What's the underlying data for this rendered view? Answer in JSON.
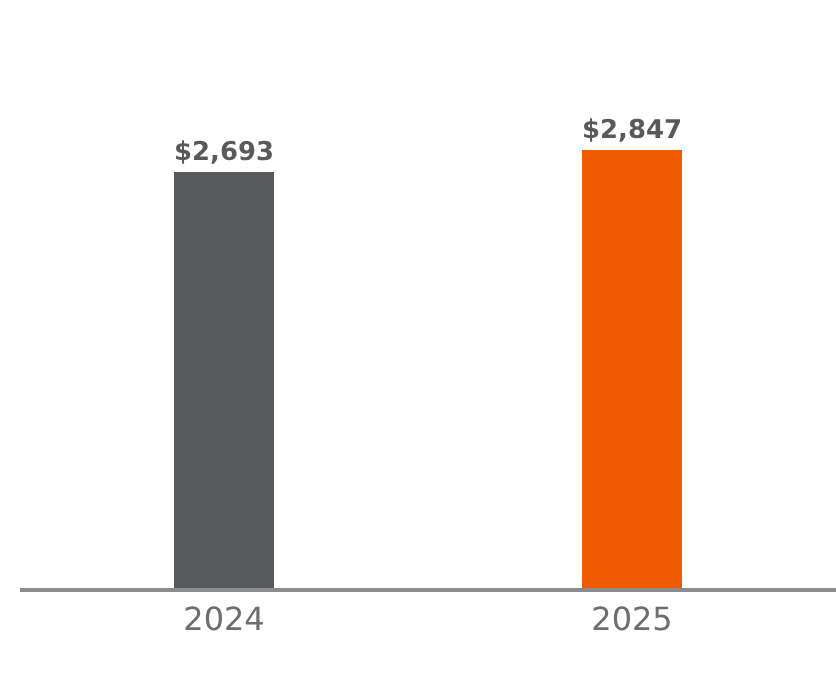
{
  "chart_data": {
    "type": "bar",
    "categories": [
      "2024",
      "2025"
    ],
    "values": [
      2693,
      2847
    ],
    "colors": [
      "#58595b",
      "#f05a00"
    ],
    "value_labels": [
      "$2,693",
      "$2,847"
    ]
  }
}
